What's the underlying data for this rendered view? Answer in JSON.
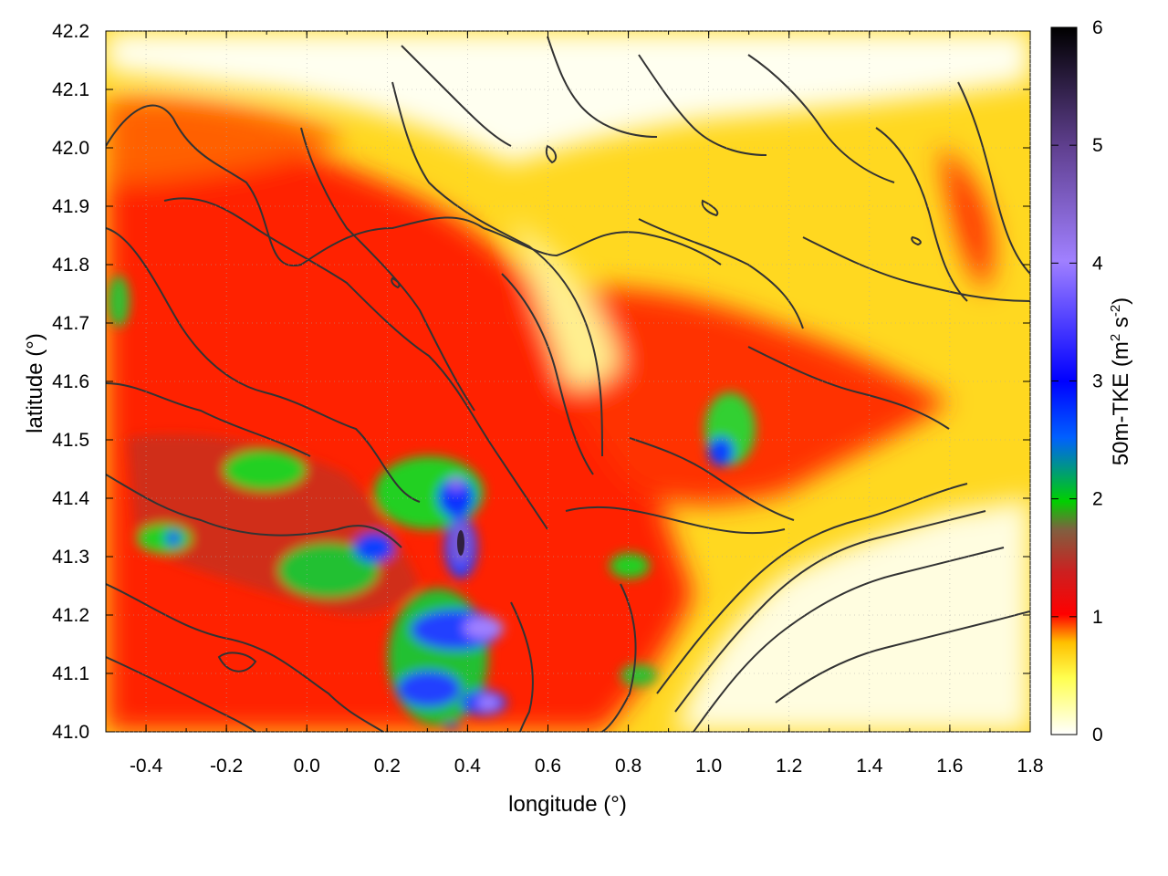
{
  "chart_data": {
    "type": "heatmap",
    "title": "",
    "xlabel": "longitude (°)",
    "ylabel": "latitude (°)",
    "xlim": [
      -0.5,
      1.8
    ],
    "ylim": [
      41.0,
      42.2
    ],
    "x_ticks": [
      "-0.4",
      "-0.2",
      "0.0",
      "0.2",
      "0.4",
      "0.6",
      "0.8",
      "1.0",
      "1.2",
      "1.4",
      "1.6",
      "1.8"
    ],
    "y_ticks": [
      "41.0",
      "41.1",
      "41.2",
      "41.3",
      "41.4",
      "41.5",
      "41.6",
      "41.7",
      "41.8",
      "41.9",
      "42.0",
      "42.1",
      "42.2"
    ],
    "colorbar": {
      "label_main": "50m-TKE (m",
      "label_sup1": "2",
      "label_mid": " s",
      "label_sup2": "-2",
      "label_end": ")",
      "range": [
        0,
        6
      ],
      "ticks": [
        "0",
        "1",
        "2",
        "3",
        "4",
        "5",
        "6"
      ],
      "colors": [
        "#ffffff",
        "#ffff20",
        "#ff8000",
        "#ff0000",
        "#aa5050",
        "#00d000",
        "#0040ff",
        "#9a80ff",
        "#000000"
      ]
    },
    "field_description": "TKE at 50 m with terrain contours",
    "grid": true
  }
}
